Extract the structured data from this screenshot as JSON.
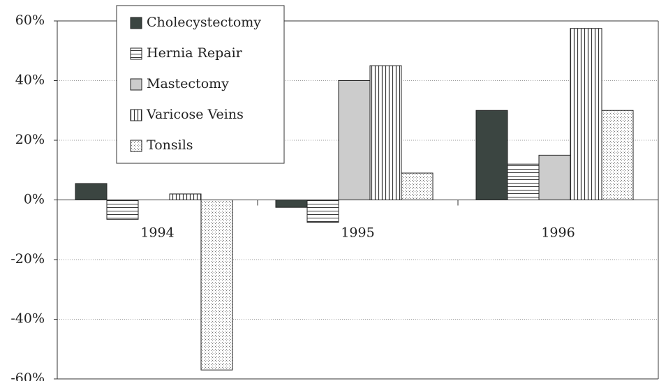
{
  "chart_data": {
    "type": "bar",
    "categories": [
      "1994",
      "1995",
      "1996"
    ],
    "series": [
      {
        "name": "Cholecystectomy",
        "color": "#3b4541",
        "pattern": "solid",
        "values": [
          5.5,
          -2.5,
          30
        ]
      },
      {
        "name": "Hernia Repair",
        "color": "#ffffff",
        "pattern": "horizontal",
        "values": [
          -6.5,
          -7.5,
          12
        ]
      },
      {
        "name": "Mastectomy",
        "color": "#cccccc",
        "pattern": "solid",
        "values": [
          0,
          40,
          15
        ]
      },
      {
        "name": "Varicose Veins",
        "color": "#ffffff",
        "pattern": "vertical",
        "values": [
          2,
          45,
          57.5
        ]
      },
      {
        "name": "Tonsils",
        "color": "#ffffff",
        "pattern": "dotted",
        "values": [
          -57,
          9,
          30
        ]
      }
    ],
    "ylim": [
      -60,
      60
    ],
    "yticks": [
      {
        "value": -60,
        "label": "-60%"
      },
      {
        "value": -40,
        "label": "-40%"
      },
      {
        "value": -20,
        "label": "-20%"
      },
      {
        "value": 0,
        "label": "0%"
      },
      {
        "value": 20,
        "label": "20%"
      },
      {
        "value": 40,
        "label": "40%"
      },
      {
        "value": 60,
        "label": "60%"
      }
    ],
    "grid": true
  }
}
